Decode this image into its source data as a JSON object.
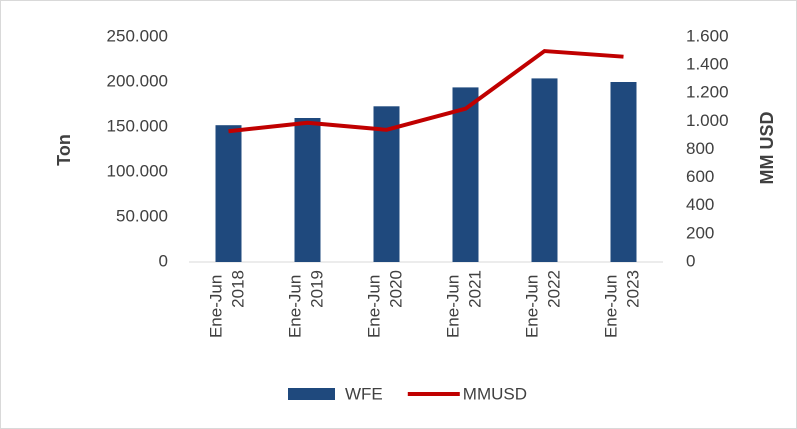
{
  "chart_data": {
    "type": "bar_line",
    "categories": [
      "Ene-Jun 2018",
      "Ene-Jun 2019",
      "Ene-Jun 2020",
      "Ene-Jun 2021",
      "Ene-Jun 2022",
      "Ene-Jun 2023"
    ],
    "series": [
      {
        "name": "WFE",
        "type": "bar",
        "color": "#1f497d",
        "values": [
          152000,
          160000,
          173000,
          194000,
          204000,
          200000
        ]
      },
      {
        "name": "MMUSD",
        "type": "line",
        "axis": "y2",
        "color": "#c00000",
        "values": [
          930,
          990,
          940,
          1090,
          1500,
          1460
        ]
      }
    ],
    "ylabel": "Ton",
    "y2label": "MM USD",
    "ylim": [
      0,
      250000
    ],
    "yticks": [
      0,
      {
        "value": 50000,
        "label": "50.000"
      },
      {
        "value": 100000,
        "label": "100.000"
      },
      {
        "value": 150000,
        "label": "150.000"
      },
      {
        "value": 200000,
        "label": "200.000"
      },
      {
        "value": 250000,
        "label": "250.000"
      }
    ],
    "y2lim": [
      0,
      1600
    ],
    "y2ticks": [
      0,
      200,
      400,
      600,
      800,
      {
        "value": 1000,
        "label": "1.000"
      },
      {
        "value": 1200,
        "label": "1.200"
      },
      {
        "value": 1400,
        "label": "1.400"
      },
      {
        "value": 1600,
        "label": "1.600"
      }
    ],
    "legend": "bottom"
  }
}
